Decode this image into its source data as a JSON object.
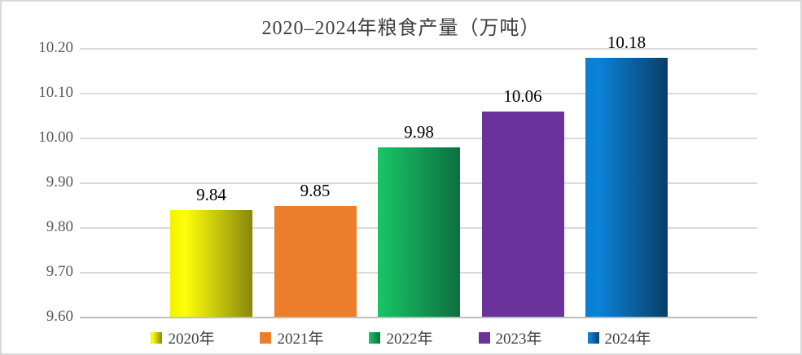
{
  "chart_data": {
    "type": "bar",
    "title": "2020–2024年粮食产量（万吨）",
    "categories": [
      "2020年",
      "2021年",
      "2022年",
      "2023年",
      "2024年"
    ],
    "values": [
      9.84,
      9.85,
      9.98,
      10.06,
      10.18
    ],
    "data_labels": [
      "9.84",
      "9.85",
      "9.98",
      "10.06",
      "10.18"
    ],
    "xlabel": "",
    "ylabel": "",
    "ylim": [
      9.6,
      10.2
    ],
    "ytick_step": 0.1,
    "ytick_labels": [
      "9.60",
      "9.70",
      "9.80",
      "9.90",
      "10.00",
      "10.10",
      "10.20"
    ],
    "grid": true,
    "legend_position": "bottom",
    "series_fills": [
      {
        "name": "2020年",
        "stops": [
          [
            "#F2F200",
            0
          ],
          [
            "#FFFF0A",
            0.18
          ],
          [
            "#87870E",
            1
          ]
        ]
      },
      {
        "name": "2021年",
        "stops": [
          [
            "#EC7D2C",
            0
          ],
          [
            "#EC7D2C",
            1
          ]
        ]
      },
      {
        "name": "2022年",
        "stops": [
          [
            "#19C566",
            0
          ],
          [
            "#0D6F40",
            1
          ]
        ]
      },
      {
        "name": "2023年",
        "stops": [
          [
            "#6B329B",
            0
          ],
          [
            "#6B329B",
            1
          ]
        ]
      },
      {
        "name": "2024年",
        "stops": [
          [
            "#0A7ED2",
            0
          ],
          [
            "#0A83D8",
            0.15
          ],
          [
            "#093E68",
            1
          ]
        ]
      }
    ],
    "colors": {
      "title_text": "#3F3F3F",
      "tick_text": "#595959",
      "data_label_text": "#000000",
      "legend_text": "#404040",
      "gridline": "#DADADA",
      "baseline": "#BEBEBE",
      "background": "#FFFFFF",
      "frame_border": "#D9D9D9"
    }
  }
}
